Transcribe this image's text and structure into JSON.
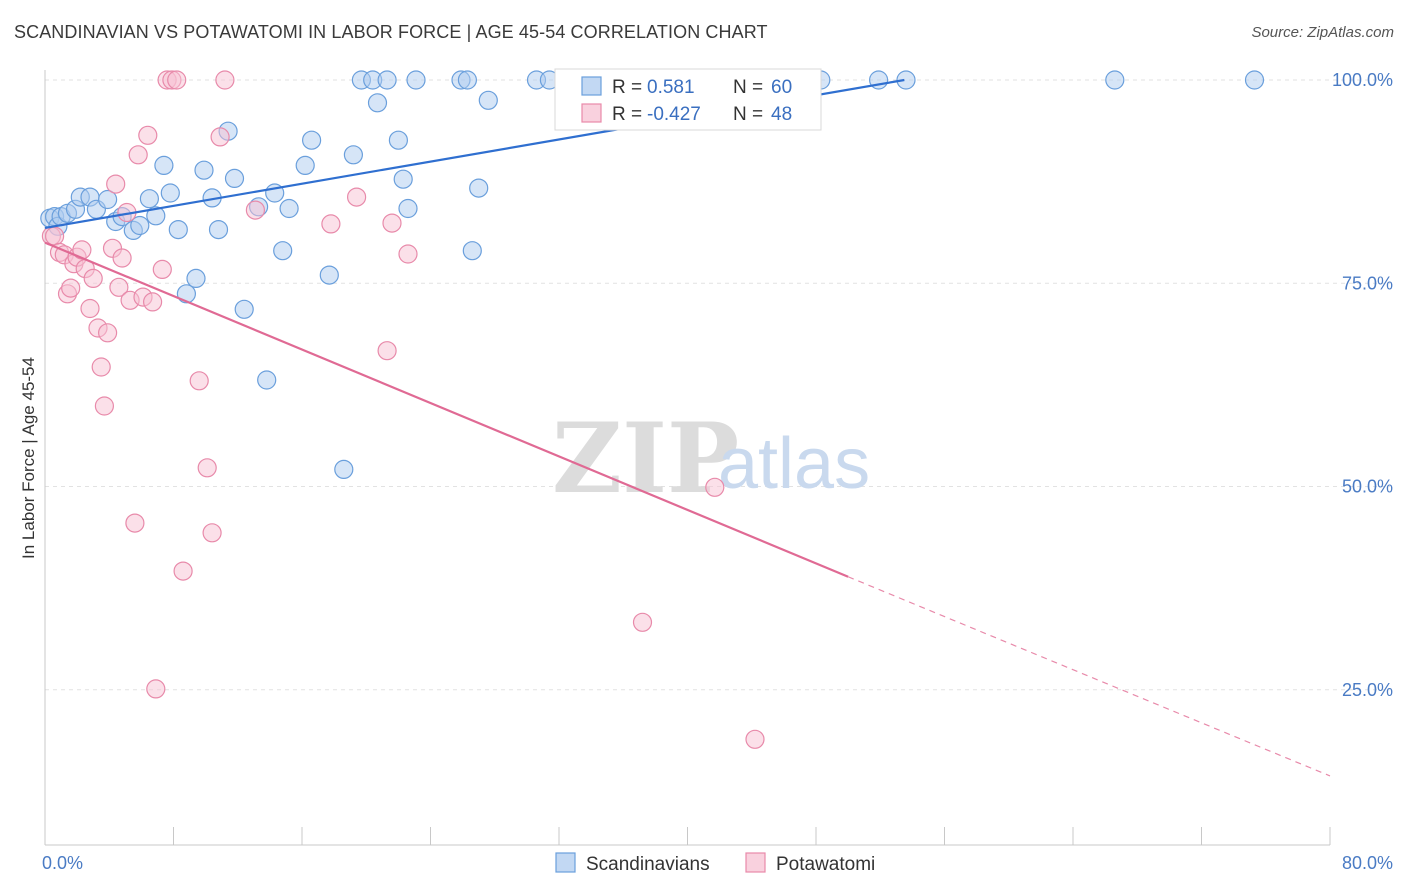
{
  "title": "SCANDINAVIAN VS POTAWATOMI IN LABOR FORCE | AGE 45-54 CORRELATION CHART",
  "source": "Source: ZipAtlas.com",
  "watermark": {
    "zip": "ZIP",
    "atlas": "atlas"
  },
  "chart_data": {
    "type": "scatter",
    "xlabel": "",
    "ylabel": "In Labor Force | Age 45-54",
    "xlim": [
      0,
      80
    ],
    "ylim": [
      0,
      100
    ],
    "x_tick_labels": [
      "0.0%",
      "80.0%"
    ],
    "y_ticks": [
      25,
      50,
      75,
      100
    ],
    "y_tick_labels": [
      "25.0%",
      "50.0%",
      "75.0%",
      "100.0%"
    ],
    "grid": true,
    "legend": {
      "position": "top-center",
      "entries": [
        {
          "r_label": "R =",
          "r_value": "0.581",
          "n_label": "N =",
          "n_value": "60"
        },
        {
          "r_label": "R =",
          "r_value": "-0.427",
          "n_label": "N =",
          "n_value": "48"
        }
      ]
    },
    "series": [
      {
        "name": "Scandinavians",
        "color": "#6a9fdc",
        "fill": "#aecbef",
        "trend": {
          "x": [
            0,
            53.5
          ],
          "y": [
            81.8,
            100
          ]
        },
        "points": [
          [
            0.3,
            83
          ],
          [
            0.6,
            83.2
          ],
          [
            0.8,
            82
          ],
          [
            1.0,
            83.2
          ],
          [
            1.4,
            83.6
          ],
          [
            1.9,
            84.1
          ],
          [
            2.2,
            85.6
          ],
          [
            2.8,
            85.6
          ],
          [
            3.2,
            84.1
          ],
          [
            3.9,
            85.3
          ],
          [
            4.4,
            82.6
          ],
          [
            4.8,
            83.2
          ],
          [
            5.5,
            81.5
          ],
          [
            5.9,
            82.1
          ],
          [
            6.5,
            85.4
          ],
          [
            6.9,
            83.3
          ],
          [
            7.4,
            89.5
          ],
          [
            7.8,
            86.1
          ],
          [
            8.3,
            81.6
          ],
          [
            8.8,
            73.7
          ],
          [
            9.4,
            75.6
          ],
          [
            9.9,
            88.9
          ],
          [
            10.4,
            85.5
          ],
          [
            10.8,
            81.6
          ],
          [
            11.4,
            93.7
          ],
          [
            11.8,
            87.9
          ],
          [
            12.4,
            71.8
          ],
          [
            13.3,
            84.4
          ],
          [
            13.8,
            63.1
          ],
          [
            14.3,
            86.1
          ],
          [
            14.8,
            79
          ],
          [
            15.2,
            84.2
          ],
          [
            16.2,
            89.5
          ],
          [
            16.6,
            92.6
          ],
          [
            17.7,
            76
          ],
          [
            18.6,
            52.1
          ],
          [
            19.2,
            90.8
          ],
          [
            19.7,
            100
          ],
          [
            20.4,
            100
          ],
          [
            20.7,
            97.2
          ],
          [
            21.3,
            100
          ],
          [
            22.0,
            92.6
          ],
          [
            22.3,
            87.8
          ],
          [
            22.6,
            84.2
          ],
          [
            23.1,
            100
          ],
          [
            25.9,
            100
          ],
          [
            26.3,
            100
          ],
          [
            26.6,
            79
          ],
          [
            27.0,
            86.7
          ],
          [
            27.6,
            97.5
          ],
          [
            30.6,
            100
          ],
          [
            31.4,
            100
          ],
          [
            33.0,
            100
          ],
          [
            37.0,
            100
          ],
          [
            40.1,
            100
          ],
          [
            48.3,
            100
          ],
          [
            51.9,
            100
          ],
          [
            53.6,
            100
          ],
          [
            66.6,
            100
          ],
          [
            75.3,
            100
          ]
        ]
      },
      {
        "name": "Potawatomi",
        "color": "#e88aaa",
        "fill": "#f7c1d3",
        "trend": {
          "x": [
            0,
            50
          ],
          "y": [
            80,
            38.9
          ]
        },
        "trend_dashed": {
          "x": [
            50,
            80
          ],
          "y": [
            38.9,
            14.4
          ]
        },
        "points": [
          [
            0.4,
            80.8
          ],
          [
            0.6,
            80.8
          ],
          [
            0.9,
            78.8
          ],
          [
            1.2,
            78.5
          ],
          [
            1.4,
            73.7
          ],
          [
            1.6,
            74.4
          ],
          [
            1.8,
            77.4
          ],
          [
            2.0,
            78.2
          ],
          [
            2.3,
            79.1
          ],
          [
            2.5,
            76.8
          ],
          [
            2.8,
            71.9
          ],
          [
            3.0,
            75.6
          ],
          [
            3.3,
            69.5
          ],
          [
            3.5,
            64.7
          ],
          [
            3.7,
            59.9
          ],
          [
            3.9,
            68.9
          ],
          [
            4.2,
            79.3
          ],
          [
            4.4,
            87.2
          ],
          [
            4.6,
            74.5
          ],
          [
            4.8,
            78.1
          ],
          [
            5.1,
            83.7
          ],
          [
            5.3,
            72.9
          ],
          [
            5.6,
            45.5
          ],
          [
            5.8,
            90.8
          ],
          [
            6.1,
            73.3
          ],
          [
            6.4,
            93.2
          ],
          [
            6.7,
            72.7
          ],
          [
            6.9,
            25.1
          ],
          [
            7.3,
            76.7
          ],
          [
            7.6,
            100
          ],
          [
            7.9,
            100
          ],
          [
            8.2,
            100
          ],
          [
            8.6,
            39.6
          ],
          [
            9.6,
            63
          ],
          [
            10.1,
            52.3
          ],
          [
            10.4,
            44.3
          ],
          [
            10.9,
            93
          ],
          [
            11.2,
            100
          ],
          [
            13.1,
            84
          ],
          [
            17.8,
            82.3
          ],
          [
            19.4,
            85.6
          ],
          [
            21.3,
            66.7
          ],
          [
            21.6,
            82.4
          ],
          [
            22.6,
            78.6
          ],
          [
            37.2,
            33.3
          ],
          [
            37.9,
            100
          ],
          [
            41.7,
            49.9
          ],
          [
            44.2,
            18.9
          ]
        ]
      }
    ]
  }
}
